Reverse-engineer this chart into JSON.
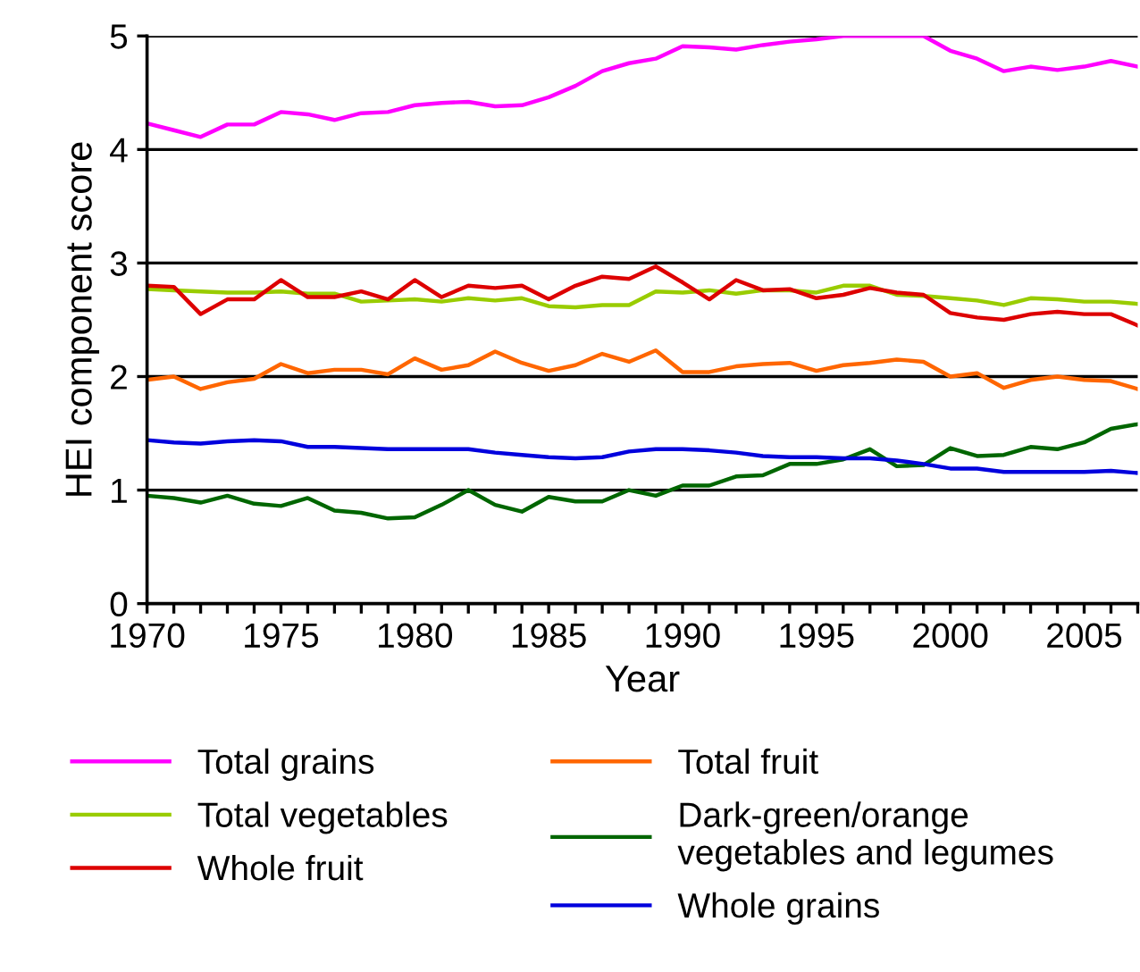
{
  "chart_data": {
    "type": "line",
    "xlabel": "Year",
    "ylabel": "HEI component score",
    "x": [
      1970,
      1971,
      1972,
      1973,
      1974,
      1975,
      1976,
      1977,
      1978,
      1979,
      1980,
      1981,
      1982,
      1983,
      1984,
      1985,
      1986,
      1987,
      1988,
      1989,
      1990,
      1991,
      1992,
      1993,
      1994,
      1995,
      1996,
      1997,
      1998,
      1999,
      2000,
      2001,
      2002,
      2003,
      2004,
      2005,
      2006,
      2007
    ],
    "xlim": [
      1970,
      2007
    ],
    "xticks": [
      1970,
      {
        "value": 1971,
        "label": null
      },
      {
        "value": 1972,
        "label": null
      },
      {
        "value": 1973,
        "label": null
      },
      {
        "value": 1974,
        "label": null
      },
      1975,
      {
        "value": 1976,
        "label": null
      },
      {
        "value": 1977,
        "label": null
      },
      {
        "value": 1978,
        "label": null
      },
      {
        "value": 1979,
        "label": null
      },
      1980,
      {
        "value": 1981,
        "label": null
      },
      {
        "value": 1982,
        "label": null
      },
      {
        "value": 1983,
        "label": null
      },
      {
        "value": 1984,
        "label": null
      },
      1985,
      {
        "value": 1986,
        "label": null
      },
      {
        "value": 1987,
        "label": null
      },
      {
        "value": 1988,
        "label": null
      },
      {
        "value": 1989,
        "label": null
      },
      1990,
      {
        "value": 1991,
        "label": null
      },
      {
        "value": 1992,
        "label": null
      },
      {
        "value": 1993,
        "label": null
      },
      {
        "value": 1994,
        "label": null
      },
      1995,
      {
        "value": 1996,
        "label": null
      },
      {
        "value": 1997,
        "label": null
      },
      {
        "value": 1998,
        "label": null
      },
      {
        "value": 1999,
        "label": null
      },
      2000,
      {
        "value": 2001,
        "label": null
      },
      {
        "value": 2002,
        "label": null
      },
      {
        "value": 2003,
        "label": null
      },
      {
        "value": 2004,
        "label": null
      },
      2005,
      {
        "value": 2006,
        "label": null
      },
      {
        "value": 2007,
        "label": null
      }
    ],
    "ylim": [
      0,
      5
    ],
    "yticks": [
      0,
      1,
      2,
      3,
      4,
      5
    ],
    "grid": "y",
    "legend": "bottom",
    "marker": "none",
    "line_style": "solid",
    "series": [
      {
        "name": "Total grains",
        "color": "#ff00ff",
        "values": [
          4.23,
          4.17,
          4.11,
          4.22,
          4.22,
          4.33,
          4.31,
          4.26,
          4.32,
          4.33,
          4.39,
          4.41,
          4.42,
          4.38,
          4.39,
          4.46,
          4.56,
          4.69,
          4.76,
          4.8,
          4.91,
          4.9,
          4.88,
          4.92,
          4.95,
          4.97,
          5.0,
          5.0,
          5.0,
          5.0,
          4.87,
          4.8,
          4.69,
          4.73,
          4.7,
          4.73,
          4.78,
          4.73
        ]
      },
      {
        "name": "Total vegetables",
        "color": "#99cc00",
        "values": [
          2.77,
          2.76,
          2.75,
          2.74,
          2.74,
          2.75,
          2.73,
          2.73,
          2.66,
          2.67,
          2.68,
          2.66,
          2.69,
          2.67,
          2.69,
          2.62,
          2.61,
          2.63,
          2.63,
          2.75,
          2.74,
          2.76,
          2.73,
          2.76,
          2.76,
          2.74,
          2.8,
          2.8,
          2.72,
          2.71,
          2.69,
          2.67,
          2.63,
          2.69,
          2.68,
          2.66,
          2.66,
          2.64
        ]
      },
      {
        "name": "Whole fruit",
        "color": "#dd0000",
        "values": [
          2.8,
          2.79,
          2.55,
          2.68,
          2.68,
          2.85,
          2.7,
          2.7,
          2.75,
          2.68,
          2.85,
          2.7,
          2.8,
          2.78,
          2.8,
          2.68,
          2.8,
          2.88,
          2.86,
          2.97,
          2.83,
          2.68,
          2.85,
          2.76,
          2.77,
          2.69,
          2.72,
          2.78,
          2.74,
          2.72,
          2.56,
          2.52,
          2.5,
          2.55,
          2.57,
          2.55,
          2.55,
          2.45
        ]
      },
      {
        "name": "Total fruit",
        "color": "#ff6600",
        "values": [
          1.97,
          2.0,
          1.89,
          1.95,
          1.98,
          2.11,
          2.03,
          2.06,
          2.06,
          2.02,
          2.16,
          2.06,
          2.1,
          2.22,
          2.12,
          2.05,
          2.1,
          2.2,
          2.13,
          2.23,
          2.04,
          2.04,
          2.09,
          2.11,
          2.12,
          2.05,
          2.1,
          2.12,
          2.15,
          2.13,
          2.0,
          2.03,
          1.9,
          1.97,
          2.0,
          1.97,
          1.96,
          1.89
        ]
      },
      {
        "name": "Dark-green/orange\nvegetables and legumes",
        "color": "#006600",
        "values": [
          0.95,
          0.93,
          0.89,
          0.95,
          0.88,
          0.86,
          0.93,
          0.82,
          0.8,
          0.75,
          0.76,
          0.87,
          1.0,
          0.87,
          0.81,
          0.94,
          0.9,
          0.9,
          1.0,
          0.95,
          1.04,
          1.04,
          1.12,
          1.13,
          1.23,
          1.23,
          1.27,
          1.36,
          1.21,
          1.22,
          1.37,
          1.3,
          1.31,
          1.38,
          1.36,
          1.42,
          1.54,
          1.58
        ]
      },
      {
        "name": "Whole grains",
        "color": "#0000dd",
        "values": [
          1.44,
          1.42,
          1.41,
          1.43,
          1.44,
          1.43,
          1.38,
          1.38,
          1.37,
          1.36,
          1.36,
          1.36,
          1.36,
          1.33,
          1.31,
          1.29,
          1.28,
          1.29,
          1.34,
          1.36,
          1.36,
          1.35,
          1.33,
          1.3,
          1.29,
          1.29,
          1.28,
          1.28,
          1.26,
          1.23,
          1.19,
          1.19,
          1.16,
          1.16,
          1.16,
          1.16,
          1.17,
          1.15
        ]
      }
    ]
  }
}
